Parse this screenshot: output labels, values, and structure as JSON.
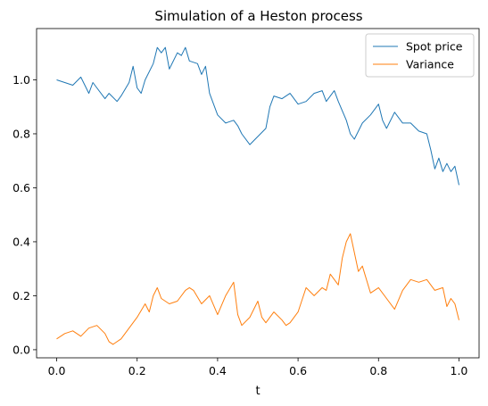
{
  "chart_data": {
    "type": "line",
    "title": "Simulation of a Heston process",
    "xlabel": "t",
    "ylabel": "",
    "xlim": [
      -0.05,
      1.05
    ],
    "ylim": [
      -0.03,
      1.19
    ],
    "x_ticks": [
      "0.0",
      "0.2",
      "0.4",
      "0.6",
      "0.8",
      "1.0"
    ],
    "y_ticks": [
      "0.0",
      "0.2",
      "0.4",
      "0.6",
      "0.8",
      "1.0"
    ],
    "grid": false,
    "legend_position": "top-right",
    "series": [
      {
        "name": "Spot price",
        "color": "#1f77b4",
        "x": [
          0.0,
          0.02,
          0.04,
          0.06,
          0.08,
          0.09,
          0.1,
          0.12,
          0.13,
          0.15,
          0.16,
          0.18,
          0.19,
          0.2,
          0.21,
          0.22,
          0.24,
          0.25,
          0.26,
          0.27,
          0.28,
          0.3,
          0.31,
          0.32,
          0.33,
          0.35,
          0.36,
          0.37,
          0.38,
          0.4,
          0.42,
          0.44,
          0.45,
          0.46,
          0.48,
          0.5,
          0.52,
          0.53,
          0.54,
          0.56,
          0.58,
          0.6,
          0.62,
          0.64,
          0.66,
          0.67,
          0.69,
          0.7,
          0.72,
          0.73,
          0.74,
          0.76,
          0.78,
          0.8,
          0.81,
          0.82,
          0.84,
          0.86,
          0.88,
          0.9,
          0.92,
          0.93,
          0.94,
          0.95,
          0.96,
          0.97,
          0.98,
          0.99,
          1.0
        ],
        "y": [
          1.0,
          0.99,
          0.98,
          1.01,
          0.95,
          0.99,
          0.97,
          0.93,
          0.95,
          0.92,
          0.94,
          0.99,
          1.05,
          0.97,
          0.95,
          1.0,
          1.06,
          1.12,
          1.1,
          1.12,
          1.04,
          1.1,
          1.09,
          1.12,
          1.07,
          1.06,
          1.02,
          1.05,
          0.95,
          0.87,
          0.84,
          0.85,
          0.83,
          0.8,
          0.76,
          0.79,
          0.82,
          0.9,
          0.94,
          0.93,
          0.95,
          0.91,
          0.92,
          0.95,
          0.96,
          0.92,
          0.96,
          0.92,
          0.85,
          0.8,
          0.78,
          0.84,
          0.87,
          0.91,
          0.85,
          0.82,
          0.88,
          0.84,
          0.84,
          0.81,
          0.8,
          0.74,
          0.67,
          0.71,
          0.66,
          0.69,
          0.66,
          0.68,
          0.61
        ]
      },
      {
        "name": "Variance",
        "color": "#ff7f0e",
        "x": [
          0.0,
          0.02,
          0.04,
          0.06,
          0.08,
          0.1,
          0.12,
          0.13,
          0.14,
          0.16,
          0.18,
          0.2,
          0.22,
          0.23,
          0.24,
          0.25,
          0.26,
          0.28,
          0.3,
          0.32,
          0.33,
          0.34,
          0.36,
          0.38,
          0.4,
          0.42,
          0.44,
          0.45,
          0.46,
          0.48,
          0.5,
          0.51,
          0.52,
          0.54,
          0.56,
          0.57,
          0.58,
          0.6,
          0.62,
          0.64,
          0.66,
          0.67,
          0.68,
          0.7,
          0.71,
          0.72,
          0.73,
          0.74,
          0.75,
          0.76,
          0.78,
          0.8,
          0.82,
          0.84,
          0.86,
          0.88,
          0.9,
          0.92,
          0.94,
          0.96,
          0.97,
          0.98,
          0.99,
          1.0
        ],
        "y": [
          0.04,
          0.06,
          0.07,
          0.05,
          0.08,
          0.09,
          0.06,
          0.03,
          0.02,
          0.04,
          0.08,
          0.12,
          0.17,
          0.14,
          0.2,
          0.23,
          0.19,
          0.17,
          0.18,
          0.22,
          0.23,
          0.22,
          0.17,
          0.2,
          0.13,
          0.2,
          0.25,
          0.13,
          0.09,
          0.12,
          0.18,
          0.12,
          0.1,
          0.14,
          0.11,
          0.09,
          0.1,
          0.14,
          0.23,
          0.2,
          0.23,
          0.22,
          0.28,
          0.24,
          0.34,
          0.4,
          0.43,
          0.36,
          0.29,
          0.31,
          0.21,
          0.23,
          0.19,
          0.15,
          0.22,
          0.26,
          0.25,
          0.26,
          0.22,
          0.23,
          0.16,
          0.19,
          0.17,
          0.11
        ]
      }
    ]
  }
}
